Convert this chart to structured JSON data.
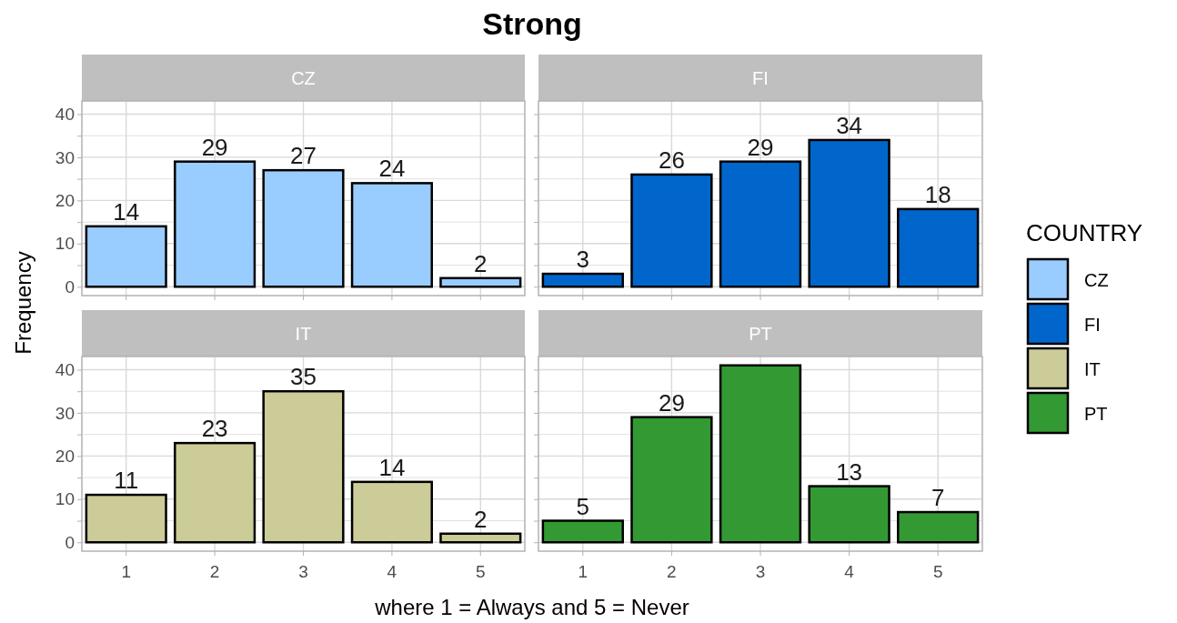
{
  "chart_data": [
    {
      "type": "bar",
      "title": "Strong",
      "subtitle": "CZ",
      "ylabel": "Frequency",
      "categories": [
        "1",
        "2",
        "3",
        "4",
        "5"
      ],
      "series": [
        {
          "name": "CZ",
          "color": "#99ccff",
          "values": [
            14,
            29,
            27,
            24,
            2
          ]
        }
      ],
      "ylim": [
        -2.05,
        43.05
      ],
      "yticks": [
        0,
        {
          "value": 5,
          "label": null
        },
        10,
        {
          "value": 15,
          "label": null
        },
        20,
        {
          "value": 25,
          "label": null
        },
        30,
        {
          "value": 35,
          "label": null
        },
        40
      ],
      "grid": true,
      "data_labels": true,
      "tick_labels": "y"
    },
    {
      "type": "bar",
      "subtitle": "FI",
      "legend_title": "COUNTRY",
      "legend": "right",
      "categories": [
        "1",
        "2",
        "3",
        "4",
        "5"
      ],
      "series": [
        {
          "name": "FI",
          "color": "#0066cc",
          "values": [
            3,
            26,
            29,
            34,
            18
          ]
        }
      ],
      "ylim": [
        -2.05,
        43.05
      ],
      "yticks": [
        0,
        {
          "value": 5,
          "label": null
        },
        10,
        {
          "value": 15,
          "label": null
        },
        20,
        {
          "value": 25,
          "label": null
        },
        30,
        {
          "value": 35,
          "label": null
        },
        40
      ],
      "grid": true,
      "data_labels": true,
      "tick_labels": false
    },
    {
      "type": "bar",
      "subtitle": "IT",
      "xlabel": "where 1 = Always and 5 = Never",
      "categories": [
        "1",
        "2",
        "3",
        "4",
        "5"
      ],
      "series": [
        {
          "name": "IT",
          "color": "#cccc99",
          "values": [
            11,
            23,
            35,
            14,
            2
          ]
        }
      ],
      "ylim": [
        -2.05,
        43.05
      ],
      "yticks": [
        0,
        {
          "value": 5,
          "label": null
        },
        10,
        {
          "value": 15,
          "label": null
        },
        20,
        {
          "value": 25,
          "label": null
        },
        30,
        {
          "value": 35,
          "label": null
        },
        40
      ],
      "grid": true,
      "data_labels": true
    },
    {
      "type": "bar",
      "subtitle": "PT",
      "categories": [
        "1",
        "2",
        "3",
        "4",
        "5"
      ],
      "series": [
        {
          "name": "PT",
          "color": "#339933",
          "values": [
            5,
            29,
            41,
            13,
            7
          ],
          "value_labels": [
            "5",
            "29",
            null,
            "13",
            "7"
          ]
        }
      ],
      "ylim": [
        -2.05,
        43.05
      ],
      "yticks": [
        0,
        {
          "value": 5,
          "label": null
        },
        10,
        {
          "value": 15,
          "label": null
        },
        20,
        {
          "value": 25,
          "label": null
        },
        30,
        {
          "value": 35,
          "label": null
        },
        40
      ],
      "grid": true,
      "tick_labels": "x"
    }
  ]
}
